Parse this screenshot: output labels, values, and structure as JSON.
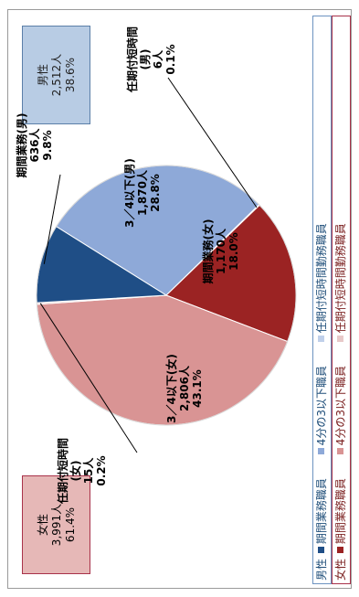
{
  "chart_data": {
    "type": "pie",
    "slices": [
      {
        "label": "3／4以下(男)",
        "count": "1,870人",
        "pct": "28.8%",
        "value": 28.8,
        "color": "#8ea9d8"
      },
      {
        "label": "任期付短時間(男)",
        "count": "6人",
        "pct": "0.1%",
        "value": 0.1,
        "color": "#c0d0ea"
      },
      {
        "label": "期間業務(女)",
        "count": "1,170人",
        "pct": "18.0%",
        "value": 18.0,
        "color": "#9b2323"
      },
      {
        "label": "3／4以下(女)",
        "count": "2,806人",
        "pct": "43.1%",
        "value": 43.1,
        "color": "#d99494"
      },
      {
        "label": "任期付短時間(女)",
        "count": "15人",
        "pct": "0.2%",
        "value": 0.2,
        "color": "#e8c9c9"
      },
      {
        "label": "期間業務(男)",
        "count": "636人",
        "pct": "9.8%",
        "value": 9.8,
        "color": "#1f4e86"
      }
    ],
    "pie_labels": {
      "male_3_4": [
        "3／4以下(男)",
        "1,870人",
        "28.8%"
      ],
      "male_short": [
        "任期付短時間",
        "(男)",
        "6人",
        "0.1%"
      ],
      "female_kikan": [
        "期間業務(女)",
        "1,170人",
        "18.0%"
      ],
      "female_3_4": [
        "3／4以下(女)",
        "2,806人",
        "43.1%"
      ],
      "female_short": [
        "任期付短時間",
        "(女)",
        "15人",
        "0.2%"
      ],
      "male_kikan": [
        "期間業務(男)",
        "636人",
        "9.8%"
      ]
    }
  },
  "summary": {
    "female": {
      "title": "女性",
      "count": "3,991人",
      "pct": "61.4%"
    },
    "male": {
      "title": "男性",
      "count": "2,512人",
      "pct": "38.6%"
    }
  },
  "legend": {
    "male": {
      "head": "男性",
      "items": [
        {
          "label": "期間業務職員",
          "color": "#1f4e86"
        },
        {
          "label": "4分の3以下職員",
          "color": "#8ea9d8"
        },
        {
          "label": "任期付短時間勤務職員",
          "color": "#c0d0ea"
        }
      ]
    },
    "female": {
      "head": "女性",
      "items": [
        {
          "label": "期間業務職員",
          "color": "#9b2323"
        },
        {
          "label": "4分の3以下職員",
          "color": "#d99494"
        },
        {
          "label": "任期付短時間勤務職員",
          "color": "#e8c9c9"
        }
      ]
    }
  }
}
